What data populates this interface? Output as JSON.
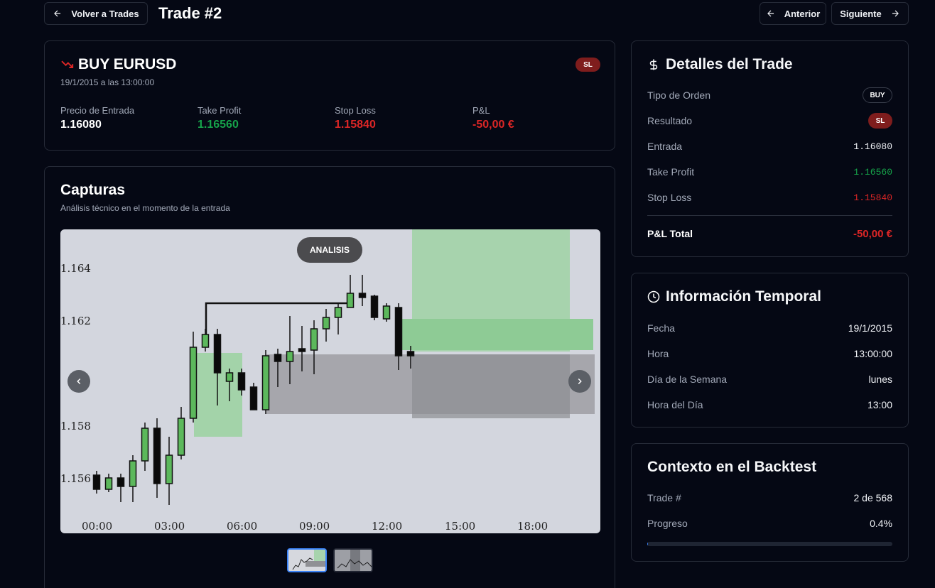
{
  "header": {
    "back_label": "Volver a Trades",
    "title": "Trade #2",
    "prev_label": "Anterior",
    "next_label": "Siguiente"
  },
  "summary": {
    "heading": "BUY EURUSD",
    "datetime": "19/1/2015 a las 13:00:00",
    "badge": "SL",
    "stats": [
      {
        "label": "Precio de Entrada",
        "value": "1.16080"
      },
      {
        "label": "Take Profit",
        "value": "1.16560"
      },
      {
        "label": "Stop Loss",
        "value": "1.15840"
      },
      {
        "label": "P&L",
        "value": "-50,00 €"
      }
    ]
  },
  "captures": {
    "title": "Capturas",
    "subtitle": "Análisis técnico en el momento de la entrada",
    "image_label": "ANALISIS",
    "y_ticks": [
      "1.164",
      "1.162",
      "1.158",
      "1.156"
    ],
    "x_ticks": [
      "00:00",
      "03:00",
      "06:00",
      "09:00",
      "12:00",
      "15:00",
      "18:00"
    ],
    "thumbnails": 2,
    "selected_thumbnail": 1
  },
  "details": {
    "title": "Detalles del Trade",
    "rows": [
      {
        "label": "Tipo de Orden",
        "value": "BUY"
      },
      {
        "label": "Resultado",
        "value": "SL"
      },
      {
        "label": "Entrada",
        "value": "1.16080"
      },
      {
        "label": "Take Profit",
        "value": "1.16560"
      },
      {
        "label": "Stop Loss",
        "value": "1.15840"
      }
    ],
    "total_label": "P&L Total",
    "total_value": "-50,00 €"
  },
  "temporal": {
    "title": "Información Temporal",
    "rows": [
      {
        "label": "Fecha",
        "value": "19/1/2015"
      },
      {
        "label": "Hora",
        "value": "13:00:00"
      },
      {
        "label": "Día de la Semana",
        "value": "lunes"
      },
      {
        "label": "Hora del Día",
        "value": "13:00"
      }
    ]
  },
  "context": {
    "title": "Contexto en el Backtest",
    "trade_label": "Trade #",
    "trade_value": "2 de 568",
    "progress_label": "Progreso",
    "progress_value": "0.4%",
    "progress_fraction": 0.004
  },
  "colors": {
    "background": "#050814",
    "border": "#262b38",
    "profit": "#16a34a",
    "loss": "#dc2626",
    "badge_sl": "#7f1d1d"
  },
  "icons": [
    "arrow-left-icon",
    "arrow-right-icon",
    "trending-down-icon",
    "dollar-icon",
    "clock-icon",
    "chevron-left-icon",
    "chevron-right-icon"
  ]
}
